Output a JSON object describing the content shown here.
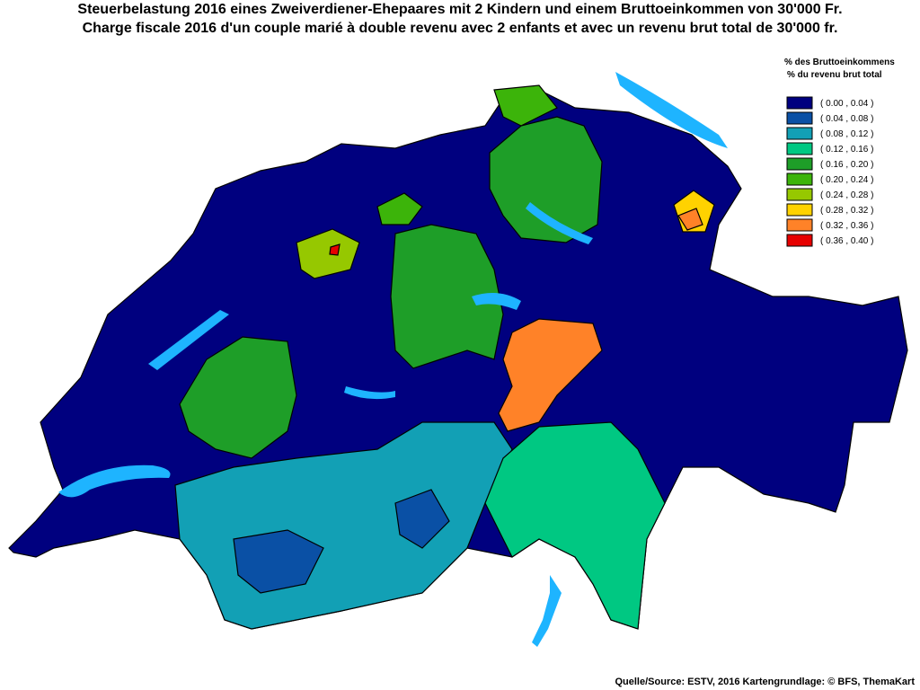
{
  "header": {
    "title_de": "Steuerbelastung 2016 eines Zweiverdiener-Ehepaares mit 2 Kindern und einem Bruttoeinkommen von 30'000 Fr.",
    "title_fr": "Charge fiscale 2016 d'un couple marié à double revenu avec 2 enfants et avec un revenu brut total de 30'000 fr."
  },
  "legend": {
    "title_de": "% des Bruttoeinkommens",
    "title_fr": "% du revenu brut total",
    "items": [
      {
        "label": "( 0.00 , 0.04 )",
        "color": "#00007f"
      },
      {
        "label": "( 0.04 , 0.08 )",
        "color": "#0a50a5"
      },
      {
        "label": "( 0.08 , 0.12 )",
        "color": "#12a0b5"
      },
      {
        "label": "( 0.12 , 0.16 )",
        "color": "#00c882"
      },
      {
        "label": "( 0.16 , 0.20 )",
        "color": "#1e9e28"
      },
      {
        "label": "( 0.20 , 0.24 )",
        "color": "#3cb40a"
      },
      {
        "label": "( 0.24 , 0.28 )",
        "color": "#96c800"
      },
      {
        "label": "( 0.28 , 0.32 )",
        "color": "#ffd200"
      },
      {
        "label": "( 0.32 , 0.36 )",
        "color": "#ff8228"
      },
      {
        "label": "( 0.36 , 0.40 )",
        "color": "#e60000"
      }
    ]
  },
  "source": "Quelle/Source: ESTV, 2016 Kartengrundlage: © BFS, ThemaKart"
}
